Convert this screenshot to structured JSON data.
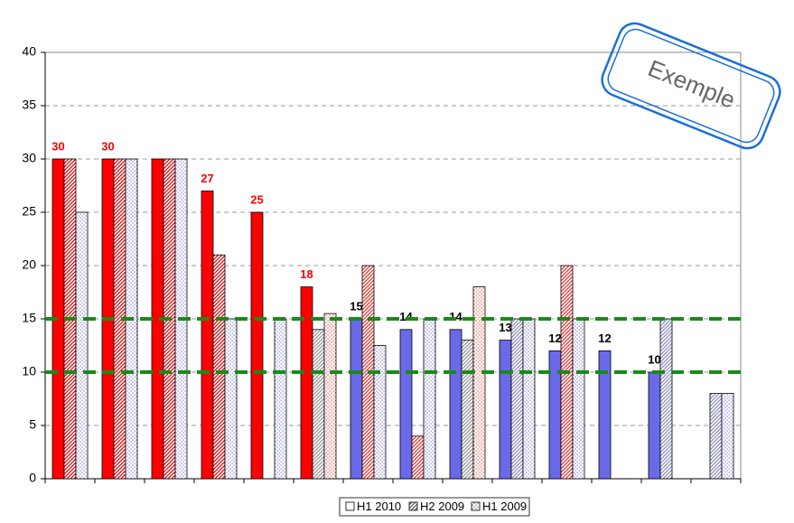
{
  "chart_data": {
    "type": "bar",
    "categories": [
      null,
      null,
      null,
      null,
      null,
      null,
      null,
      null,
      null,
      null,
      null,
      null,
      null,
      null
    ],
    "series": [
      {
        "name": "H1 2010",
        "pattern": "solid",
        "values": [
          30,
          30,
          30,
          27,
          25,
          18,
          15,
          14,
          14,
          13,
          12,
          12,
          10,
          null
        ],
        "value_labels": [
          "30",
          "30",
          null,
          "27",
          "25",
          "18",
          "15",
          "14",
          "14",
          "13",
          "12",
          "12",
          "10",
          null
        ],
        "colors": [
          "#ff0000",
          "#ff0000",
          "#ff0000",
          "#ff0000",
          "#ff0000",
          "#ff0000",
          "#6a6ae8",
          "#6a6ae8",
          "#6a6ae8",
          "#6a6ae8",
          "#6a6ae8",
          "#6a6ae8",
          "#6a6ae8",
          "#6a6ae8"
        ]
      },
      {
        "name": "H2 2009",
        "pattern": "hatch",
        "values": [
          30,
          30,
          30,
          21,
          null,
          14,
          20,
          4,
          13,
          15,
          20,
          null,
          15,
          8
        ],
        "colors": [
          "#e00000",
          "#e00000",
          "#e00000",
          "#e00000",
          "#e00000",
          "#909090",
          "#e03030",
          "#e03030",
          "#909090",
          "#8a8ab8",
          "#e03030",
          "#8a8ab8",
          "#8a8ab8",
          "#8a8ab8"
        ]
      },
      {
        "name": "H1 2009",
        "pattern": "dots",
        "values": [
          25,
          30,
          30,
          15,
          15,
          15.5,
          12.5,
          15,
          18,
          15,
          15,
          null,
          null,
          8
        ],
        "colors": [
          "#7070d0",
          "#7070d0",
          "#7070d0",
          "#7070d0",
          "#7070d0",
          "#e04040",
          "#7070d0",
          "#7070d0",
          "#e04040",
          "#7070d0",
          "#7070d0",
          "#7070d0",
          "#7070d0",
          "#7070d0"
        ]
      }
    ],
    "ylim": [
      0,
      40
    ],
    "yticks": [
      0,
      5,
      10,
      15,
      20,
      25,
      30,
      35,
      40
    ],
    "grid": true,
    "reference_lines": [
      {
        "value": 15,
        "color": "#1a8a1a"
      },
      {
        "value": 10,
        "color": "#1a8a1a"
      }
    ],
    "legend": "bottom",
    "annotation": "Exemple"
  }
}
